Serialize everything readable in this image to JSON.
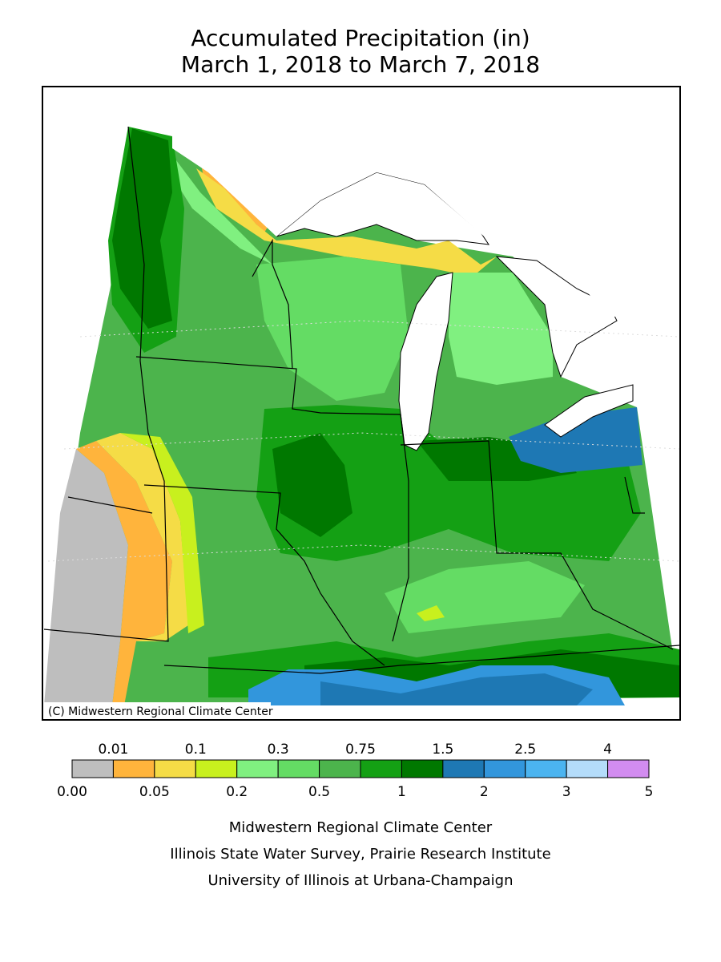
{
  "title": [
    "Accumulated Precipitation (in)",
    "March 1, 2018 to March 7, 2018"
  ],
  "map": {
    "credit": "(C) Midwestern Regional Climate Center"
  },
  "legend": {
    "bounds": [
      {
        "value": 0,
        "label": "0.00"
      },
      0.01,
      0.05,
      0.1,
      0.2,
      0.3,
      0.5,
      0.75,
      1,
      1.5,
      2,
      2.5,
      3,
      4,
      5
    ],
    "colors": [
      "#bebebe",
      "#ffb43c",
      "#f5dc46",
      "#c8f01e",
      "#80f080",
      "#64dc64",
      "#4cb44c",
      "#14a014",
      "#007800",
      "#1e78b4",
      "#3296dc",
      "#4bb4f0",
      "#b4dcfa",
      "#d28cf0"
    ]
  },
  "footer": [
    "Midwestern Regional Climate Center",
    "Illinois State Water Survey, Prairie Research Institute",
    "University of Illinois at Urbana-Champaign"
  ]
}
